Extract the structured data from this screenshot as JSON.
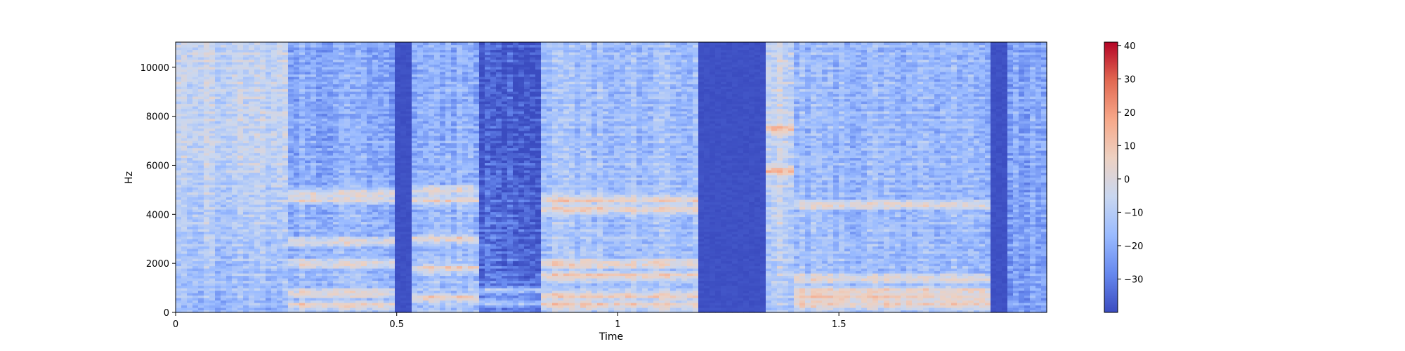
{
  "chart_data": {
    "type": "heatmap",
    "subtype": "spectrogram",
    "title": "",
    "xlabel": "Time",
    "ylabel": "Hz",
    "xlim": [
      0,
      1.97
    ],
    "ylim": [
      0,
      11025
    ],
    "x_ticks": [
      {
        "value": 0,
        "label": "0"
      },
      {
        "value": 0.5,
        "label": "0.5"
      },
      {
        "value": 1,
        "label": "1"
      },
      {
        "value": 1.5,
        "label": "1.5"
      }
    ],
    "y_ticks": [
      {
        "value": 0,
        "label": "0"
      },
      {
        "value": 2000,
        "label": "2000"
      },
      {
        "value": 4000,
        "label": "4000"
      },
      {
        "value": 6000,
        "label": "6000"
      },
      {
        "value": 8000,
        "label": "8000"
      },
      {
        "value": 10000,
        "label": "10000"
      }
    ],
    "colormap": "coolwarm",
    "colorbar": {
      "range": [
        -40,
        41
      ],
      "ticks": [
        {
          "value": 40,
          "label": "40"
        },
        {
          "value": 30,
          "label": "30"
        },
        {
          "value": 20,
          "label": "20"
        },
        {
          "value": 10,
          "label": "10"
        },
        {
          "value": 0,
          "label": "0"
        },
        {
          "value": -10,
          "label": "−10"
        },
        {
          "value": -20,
          "label": "−20"
        },
        {
          "value": -30,
          "label": "−30"
        }
      ],
      "colors": [
        "#3b4cc0",
        "#6688ee",
        "#9abbff",
        "#c9d7f0",
        "#edd1c2",
        "#f7a889",
        "#e26952",
        "#b40426"
      ]
    },
    "segments": [
      {
        "t_start": 0.0,
        "t_end": 0.26,
        "level_db": -18,
        "high_band_db": -8,
        "formants_hz": []
      },
      {
        "t_start": 0.26,
        "t_end": 0.5,
        "level_db": -16,
        "high_band_db": -22,
        "formants_hz": [
          300,
          800,
          2000,
          2900,
          4600,
          4900
        ]
      },
      {
        "t_start": 0.5,
        "t_end": 0.53,
        "level_db": -40,
        "high_band_db": -40,
        "formants_hz": []
      },
      {
        "t_start": 0.53,
        "t_end": 0.68,
        "level_db": -14,
        "high_band_db": -20,
        "formants_hz": [
          600,
          1800,
          3000,
          4600,
          5000
        ]
      },
      {
        "t_start": 0.68,
        "t_end": 0.82,
        "level_db": -32,
        "high_band_db": -38,
        "formants_hz": [
          400,
          900
        ]
      },
      {
        "t_start": 0.82,
        "t_end": 1.18,
        "level_db": -14,
        "high_band_db": -16,
        "formants_hz": [
          300,
          700,
          1500,
          2000,
          4200,
          4600
        ]
      },
      {
        "t_start": 1.18,
        "t_end": 1.33,
        "level_db": -40,
        "high_band_db": -40,
        "formants_hz": []
      },
      {
        "t_start": 1.33,
        "t_end": 1.4,
        "level_db": -12,
        "high_band_db": -6,
        "formants_hz": [
          5800,
          7500
        ]
      },
      {
        "t_start": 1.4,
        "t_end": 1.84,
        "level_db": -16,
        "high_band_db": -18,
        "formants_hz": [
          300,
          600,
          900,
          1400,
          4400
        ]
      },
      {
        "t_start": 1.84,
        "t_end": 1.88,
        "level_db": -40,
        "high_band_db": -40,
        "formants_hz": []
      },
      {
        "t_start": 1.88,
        "t_end": 1.97,
        "level_db": -24,
        "high_band_db": -22,
        "formants_hz": []
      }
    ]
  }
}
